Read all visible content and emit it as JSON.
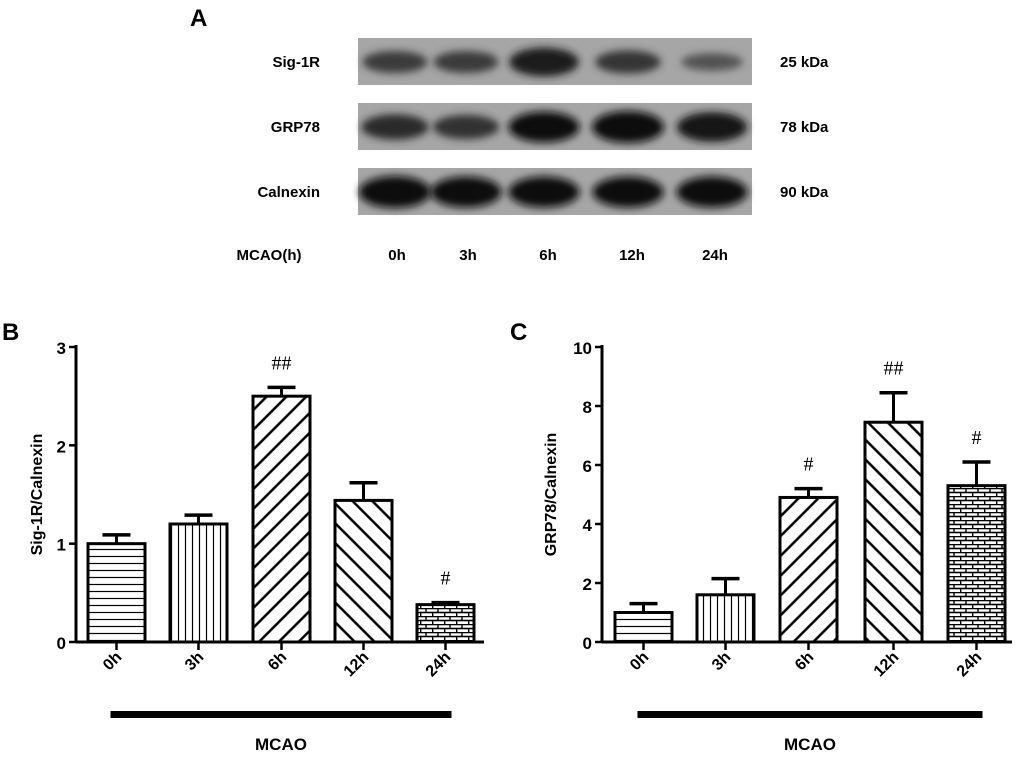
{
  "panel_a": {
    "label": "A",
    "rows": [
      {
        "name": "Sig-1R",
        "kda": "25 kDa",
        "intensity": [
          0.55,
          0.55,
          0.85,
          0.6,
          0.35
        ]
      },
      {
        "name": "GRP78",
        "kda": "78 kDa",
        "intensity": [
          0.7,
          0.65,
          0.95,
          1.0,
          0.9
        ]
      },
      {
        "name": "Calnexin",
        "kda": "90 kDa",
        "intensity": [
          1.0,
          0.95,
          0.95,
          0.95,
          0.95
        ]
      }
    ],
    "lane_header": "MCAO(h)",
    "lanes": [
      "0h",
      "3h",
      "6h",
      "12h",
      "24h"
    ]
  },
  "chart_data": [
    {
      "panel": "B",
      "type": "bar",
      "categories": [
        "0h",
        "3h",
        "6h",
        "12h",
        "24h"
      ],
      "values": [
        1.0,
        1.2,
        2.5,
        1.44,
        0.38
      ],
      "error_upper": [
        1.09,
        1.29,
        2.59,
        1.62,
        0.4
      ],
      "annotations": [
        "",
        "",
        "##",
        "",
        "#"
      ],
      "patterns": [
        "horizontal",
        "vertical",
        "diagonal-up",
        "diagonal-down",
        "brick"
      ],
      "ylabel": "Sig-1R/Calnexin",
      "xlabel": "MCAO",
      "ylim": [
        0,
        3
      ],
      "yticks": [
        0,
        1,
        2,
        3
      ]
    },
    {
      "panel": "C",
      "type": "bar",
      "categories": [
        "0h",
        "3h",
        "6h",
        "12h",
        "24h"
      ],
      "values": [
        1.0,
        1.6,
        4.9,
        7.45,
        5.3
      ],
      "error_upper": [
        1.3,
        2.15,
        5.2,
        8.45,
        6.1
      ],
      "annotations": [
        "",
        "",
        "#",
        "##",
        "#"
      ],
      "patterns": [
        "horizontal",
        "vertical",
        "diagonal-up",
        "diagonal-down",
        "brick"
      ],
      "ylabel": "GRP78/Calnexin",
      "xlabel": "MCAO",
      "ylim": [
        0,
        10
      ],
      "yticks": [
        0,
        2,
        4,
        6,
        8,
        10
      ]
    }
  ]
}
